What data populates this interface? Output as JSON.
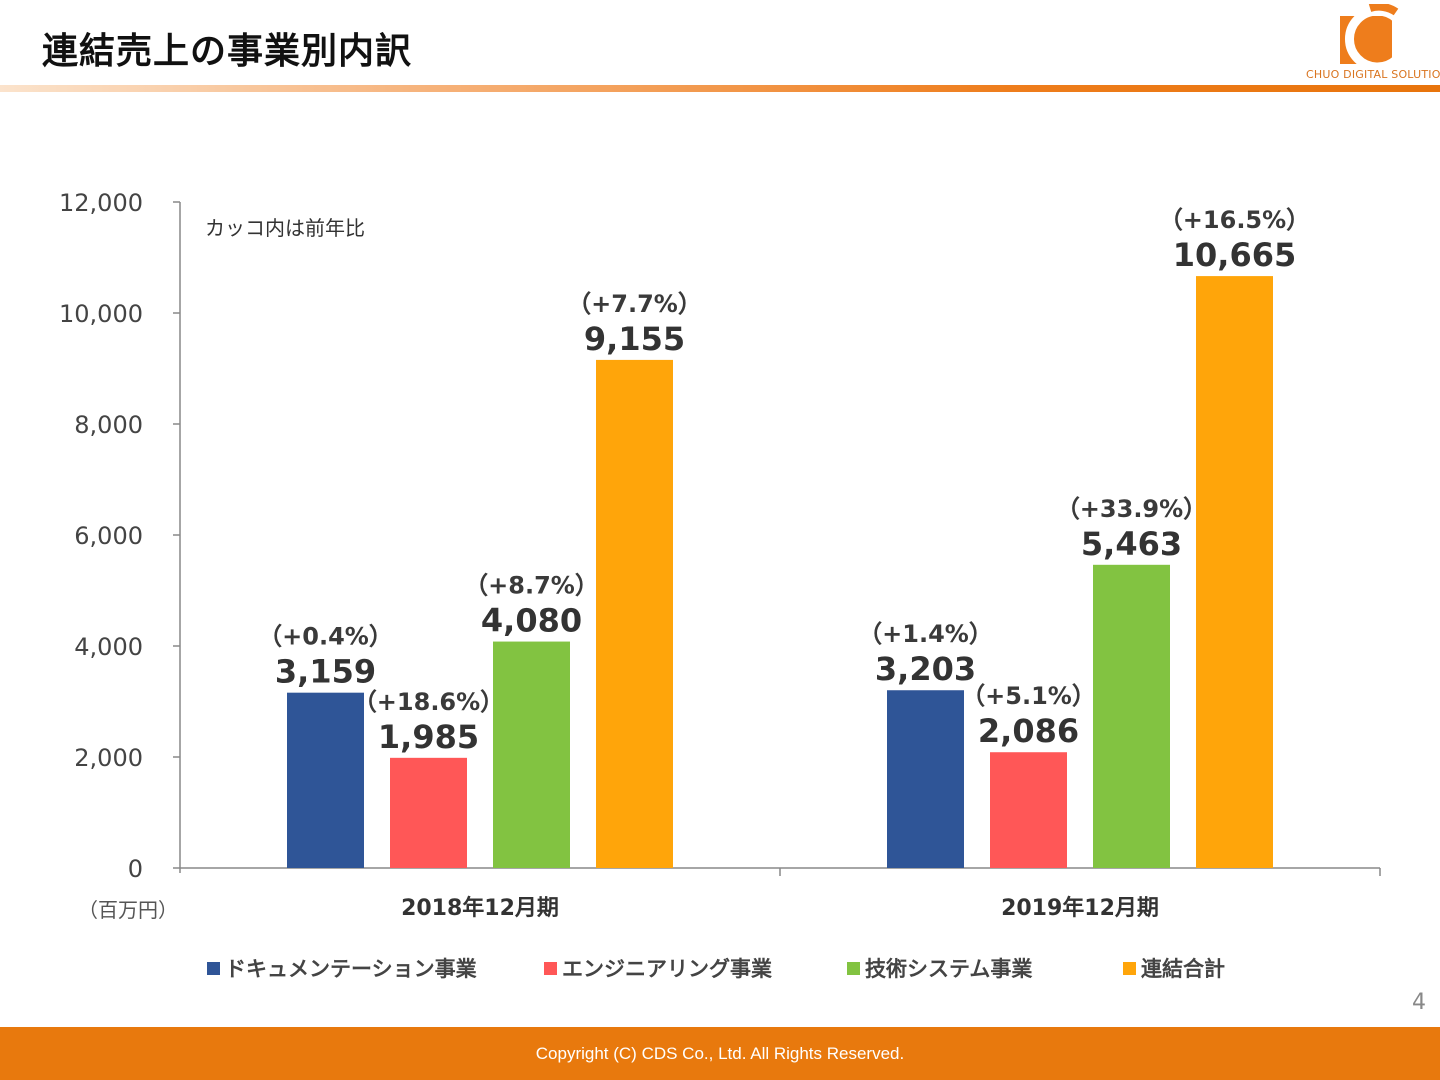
{
  "header": {
    "title": "連結売上の事業別内訳",
    "logo_text": "CHUO DIGITAL SOLUTION"
  },
  "footer": {
    "copyright": "Copyright (C)  CDS Co., Ltd. All Rights Reserved.",
    "page_number": "4"
  },
  "colors": {
    "accent": "#E8790D",
    "document": "#2F5597",
    "engineering": "#FF5757",
    "tech": "#82C341",
    "total": "#FFA50A"
  },
  "chart_data": {
    "type": "bar",
    "note": "カッコ内は前年比",
    "unit": "（百万円）",
    "categories": [
      "2018年12月期",
      "2019年12月期"
    ],
    "ylim": [
      0,
      12000
    ],
    "yticks": [
      "0",
      "2,000",
      "4,000",
      "6,000",
      "8,000",
      "10,000",
      "12,000"
    ],
    "legend_position": "bottom",
    "series": [
      {
        "name": "ドキュメンテーション事業",
        "values": [
          3159,
          3203
        ],
        "labels": [
          "3,159",
          "3,203"
        ],
        "yoy": [
          "（+0.4%）",
          "（+1.4%）"
        ],
        "color": "#2F5597"
      },
      {
        "name": "エンジニアリング事業",
        "values": [
          1985,
          2086
        ],
        "labels": [
          "1,985",
          "2,086"
        ],
        "yoy": [
          "（+18.6%）",
          "（+5.1%）"
        ],
        "color": "#FF5757"
      },
      {
        "name": "技術システム事業",
        "values": [
          4080,
          5463
        ],
        "labels": [
          "4,080",
          "5,463"
        ],
        "yoy": [
          "（+8.7%）",
          "（+33.9%）"
        ],
        "color": "#82C341"
      },
      {
        "name": "連結合計",
        "values": [
          9155,
          10665
        ],
        "labels": [
          "9,155",
          "10,665"
        ],
        "yoy": [
          "（+7.7%）",
          "（+16.5%）"
        ],
        "color": "#FFA50A"
      }
    ]
  }
}
